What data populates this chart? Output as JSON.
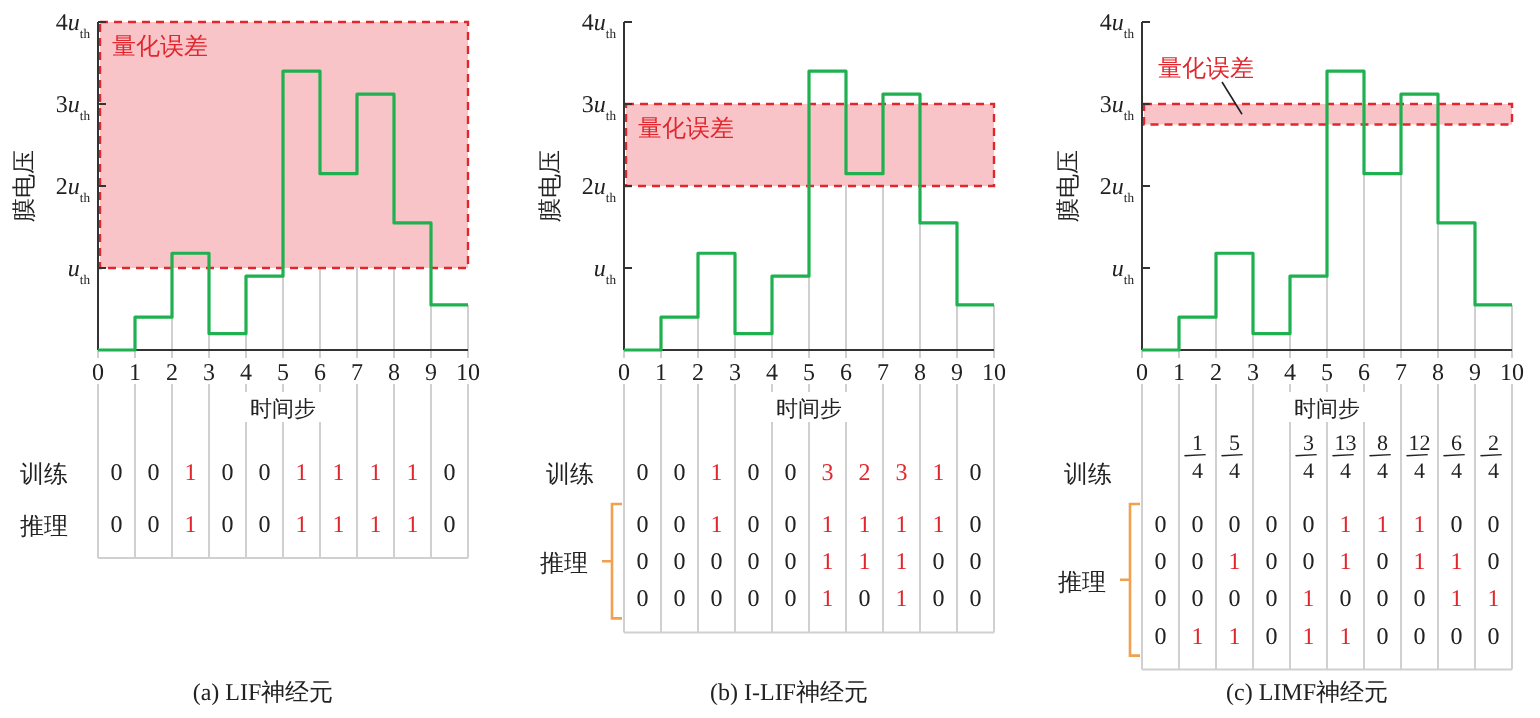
{
  "chart_data": [
    {
      "type": "step",
      "x": [
        0,
        1,
        2,
        3,
        4,
        5,
        6,
        7,
        8,
        9,
        10
      ],
      "values": [
        0,
        0.4,
        1.18,
        0.2,
        0.9,
        3.4,
        2.15,
        3.12,
        1.55,
        0.55,
        0.55
      ],
      "color": "#1fb050",
      "xlim": [
        0,
        10
      ],
      "ylim": [
        0,
        4
      ],
      "xticks": [
        0,
        1,
        2,
        3,
        4,
        5,
        6,
        7,
        8,
        9,
        10
      ],
      "yticks": [
        {
          "value": 1,
          "label": "u$_{th}$"
        },
        {
          "value": 2,
          "label": "2u$_{th}$"
        },
        {
          "value": 3,
          "label": "3u$_{th}$"
        },
        {
          "value": 4,
          "label": "4u$_{th}$"
        }
      ],
      "xlabel": "时间步",
      "ylabel": "膜电压",
      "bands": [
        {
          "axis": "y",
          "from": 1,
          "to": 4,
          "label": "量化误差",
          "color": "#f9c4c8"
        }
      ],
      "grid": "x",
      "annotations": [
        "(a)  LIF神经元",
        "训练",
        "0 0 1 0 0 1 1 1 1 0",
        "推理",
        "0 0 1 0 0 1 1 1 1 0"
      ]
    },
    {
      "type": "step",
      "x": [
        0,
        1,
        2,
        3,
        4,
        5,
        6,
        7,
        8,
        9,
        10
      ],
      "values": [
        0,
        0.4,
        1.18,
        0.2,
        0.9,
        3.4,
        2.15,
        3.12,
        1.55,
        0.55,
        0.55
      ],
      "color": "#1fb050",
      "xlim": [
        0,
        10
      ],
      "ylim": [
        0,
        4
      ],
      "xticks": [
        0,
        1,
        2,
        3,
        4,
        5,
        6,
        7,
        8,
        9,
        10
      ],
      "yticks": [
        {
          "value": 1,
          "label": "u$_{th}$"
        },
        {
          "value": 2,
          "label": "2u$_{th}$"
        },
        {
          "value": 3,
          "label": "3u$_{th}$"
        },
        {
          "value": 4,
          "label": "4u$_{th}$"
        }
      ],
      "xlabel": "时间步",
      "ylabel": "膜电压",
      "bands": [
        {
          "axis": "y",
          "from": 2,
          "to": 3,
          "label": "量化误差",
          "color": "#f9c4c8"
        }
      ],
      "grid": "x",
      "annotations": [
        "(b)  I-LIF神经元",
        "训练",
        "0 0 1 0 0 3 2 3 1 0",
        "推理",
        "0 0 1 0 0 1 1 1 1 0",
        "0 0 0 0 0 1 1 1 0 0",
        "0 0 0 0 0 1 0 1 0 0"
      ]
    },
    {
      "type": "step",
      "x": [
        0,
        1,
        2,
        3,
        4,
        5,
        6,
        7,
        8,
        9,
        10
      ],
      "values": [
        0,
        0.4,
        1.18,
        0.2,
        0.9,
        3.4,
        2.15,
        3.12,
        1.55,
        0.55,
        0.55
      ],
      "color": "#1fb050",
      "xlim": [
        0,
        10
      ],
      "ylim": [
        0,
        4
      ],
      "xticks": [
        0,
        1,
        2,
        3,
        4,
        5,
        6,
        7,
        8,
        9,
        10
      ],
      "yticks": [
        {
          "value": 1,
          "label": "u$_{th}$"
        },
        {
          "value": 2,
          "label": "2u$_{th}$"
        },
        {
          "value": 3,
          "label": "3u$_{th}$"
        },
        {
          "value": 4,
          "label": "4u$_{th}$"
        }
      ],
      "xlabel": "时间步",
      "ylabel": "膜电压",
      "bands": [
        {
          "axis": "y",
          "from": 2.75,
          "to": 3,
          "label": "量化误差",
          "color": "#f9c4c8"
        }
      ],
      "grid": "x",
      "annotations": [
        "(c)  LIMF神经元",
        "训练",
        " 1/4 5/4  3/4 13/4 8/4 12/4 6/4 2/4",
        "推理",
        "0 0 0 0 0 1 1 1 0 0",
        "0 0 1 0 0 1 0 1 1 0",
        "0 0 0 0 1 0 0 0 1 1",
        "0 1 1 0 1 1 0 0 0 0"
      ]
    }
  ]
}
